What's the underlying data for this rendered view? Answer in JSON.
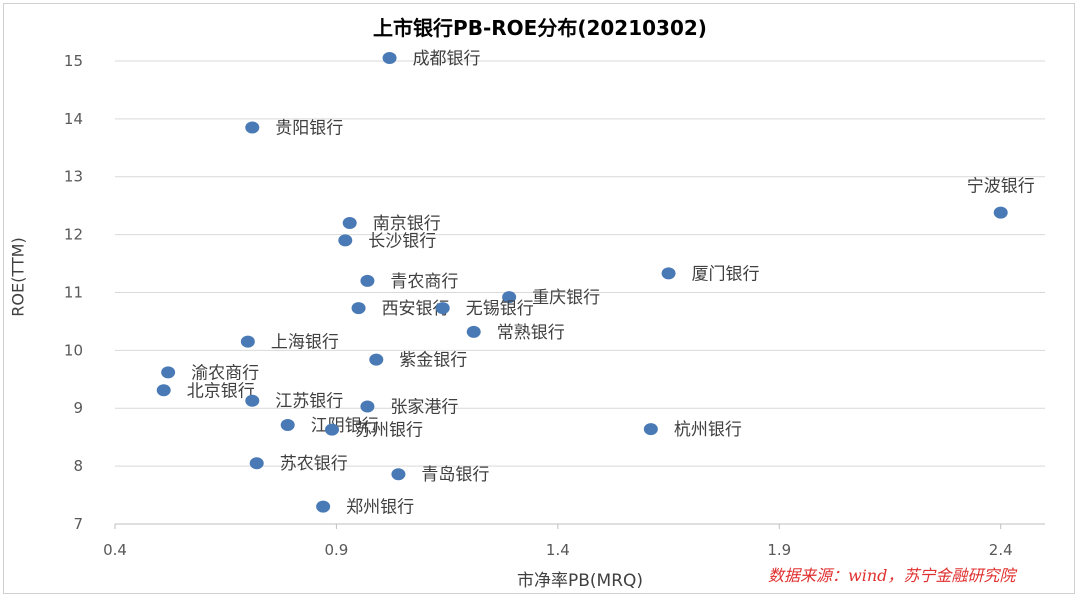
{
  "chart_data": {
    "type": "scatter",
    "title": "上市银行PB-ROE分布(20210302)",
    "xlabel": "市净率PB(MRQ)",
    "ylabel": "ROE(TTM)",
    "xlim": [
      0.4,
      2.5
    ],
    "ylim": [
      7,
      15.5
    ],
    "x_ticks": [
      "0.4",
      "0.9",
      "1.4",
      "1.9",
      "2.4"
    ],
    "y_ticks": [
      "7",
      "8",
      "9",
      "10",
      "11",
      "12",
      "13",
      "14",
      "15"
    ],
    "grid": "horizontal",
    "marker_color": "#4a7ab5",
    "points": [
      {
        "label": "成都银行",
        "x": 1.02,
        "y": 15.05
      },
      {
        "label": "贵阳银行",
        "x": 0.71,
        "y": 13.85
      },
      {
        "label": "宁波银行",
        "x": 2.4,
        "y": 12.38
      },
      {
        "label": "南京银行",
        "x": 0.93,
        "y": 12.2
      },
      {
        "label": "长沙银行",
        "x": 0.92,
        "y": 11.9
      },
      {
        "label": "青农商行",
        "x": 0.97,
        "y": 11.2
      },
      {
        "label": "厦门银行",
        "x": 1.65,
        "y": 11.33
      },
      {
        "label": "重庆银行",
        "x": 1.29,
        "y": 10.92
      },
      {
        "label": "西安银行",
        "x": 0.95,
        "y": 10.73
      },
      {
        "label": "无锡银行",
        "x": 1.14,
        "y": 10.73
      },
      {
        "label": "常熟银行",
        "x": 1.21,
        "y": 10.32
      },
      {
        "label": "上海银行",
        "x": 0.7,
        "y": 10.15
      },
      {
        "label": "紫金银行",
        "x": 0.99,
        "y": 9.84
      },
      {
        "label": "渝农商行",
        "x": 0.52,
        "y": 9.62
      },
      {
        "label": "北京银行",
        "x": 0.51,
        "y": 9.31
      },
      {
        "label": "江苏银行",
        "x": 0.71,
        "y": 9.13
      },
      {
        "label": "张家港行",
        "x": 0.97,
        "y": 9.03
      },
      {
        "label": "江阴银行",
        "x": 0.79,
        "y": 8.71
      },
      {
        "label": "苏州银行",
        "x": 0.89,
        "y": 8.63
      },
      {
        "label": "杭州银行",
        "x": 1.61,
        "y": 8.64
      },
      {
        "label": "苏农银行",
        "x": 0.72,
        "y": 8.05
      },
      {
        "label": "青岛银行",
        "x": 1.04,
        "y": 7.86
      },
      {
        "label": "郑州银行",
        "x": 0.87,
        "y": 7.3
      }
    ]
  },
  "source_note": "数据来源：wind，苏宁金融研究院"
}
